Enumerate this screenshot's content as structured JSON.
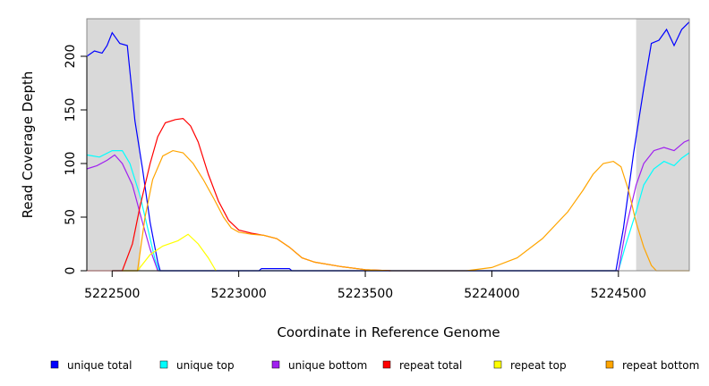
{
  "chart_data": {
    "type": "line",
    "xlabel": "Coordinate in Reference Genome",
    "ylabel": "Read Coverage Depth",
    "xlim": [
      5222400,
      5224780
    ],
    "ylim": [
      0,
      235
    ],
    "x_ticks": [
      5222500,
      5223000,
      5223500,
      5224000,
      5224500
    ],
    "y_ticks": [
      0,
      50,
      100,
      150,
      200
    ],
    "grid": false,
    "legend_position": "bottom",
    "shaded_regions": [
      {
        "x0": 5222400,
        "x1": 5222610,
        "color": "#d9d9d9"
      },
      {
        "x0": 5224570,
        "x1": 5224780,
        "color": "#d9d9d9"
      }
    ],
    "series": [
      {
        "name": "unique total",
        "color": "#0000ff",
        "points": [
          [
            5222400,
            200
          ],
          [
            5222430,
            205
          ],
          [
            5222460,
            203
          ],
          [
            5222480,
            210
          ],
          [
            5222500,
            222
          ],
          [
            5222530,
            212
          ],
          [
            5222560,
            210
          ],
          [
            5222590,
            140
          ],
          [
            5222620,
            95
          ],
          [
            5222650,
            45
          ],
          [
            5222680,
            8
          ],
          [
            5222690,
            0
          ],
          [
            5223080,
            0
          ],
          [
            5223090,
            2
          ],
          [
            5223200,
            2
          ],
          [
            5223210,
            0
          ],
          [
            5224490,
            0
          ],
          [
            5224520,
            40
          ],
          [
            5224560,
            110
          ],
          [
            5224600,
            170
          ],
          [
            5224630,
            212
          ],
          [
            5224660,
            215
          ],
          [
            5224690,
            225
          ],
          [
            5224720,
            210
          ],
          [
            5224750,
            225
          ],
          [
            5224780,
            232
          ]
        ]
      },
      {
        "name": "unique top",
        "color": "#00ffff",
        "points": [
          [
            5222400,
            108
          ],
          [
            5222450,
            106
          ],
          [
            5222500,
            112
          ],
          [
            5222540,
            112
          ],
          [
            5222570,
            100
          ],
          [
            5222610,
            70
          ],
          [
            5222640,
            40
          ],
          [
            5222670,
            10
          ],
          [
            5222685,
            0
          ],
          [
            5224500,
            0
          ],
          [
            5224530,
            25
          ],
          [
            5224570,
            55
          ],
          [
            5224600,
            80
          ],
          [
            5224640,
            95
          ],
          [
            5224680,
            102
          ],
          [
            5224720,
            98
          ],
          [
            5224750,
            105
          ],
          [
            5224780,
            110
          ]
        ]
      },
      {
        "name": "unique bottom",
        "color": "#a020f0",
        "points": [
          [
            5222400,
            95
          ],
          [
            5222440,
            98
          ],
          [
            5222480,
            103
          ],
          [
            5222510,
            108
          ],
          [
            5222540,
            100
          ],
          [
            5222580,
            80
          ],
          [
            5222620,
            45
          ],
          [
            5222650,
            20
          ],
          [
            5222680,
            0
          ],
          [
            5224500,
            0
          ],
          [
            5224530,
            40
          ],
          [
            5224570,
            80
          ],
          [
            5224600,
            100
          ],
          [
            5224640,
            112
          ],
          [
            5224680,
            115
          ],
          [
            5224720,
            112
          ],
          [
            5224760,
            120
          ],
          [
            5224780,
            122
          ]
        ]
      },
      {
        "name": "repeat total",
        "color": "#ff0000",
        "points": [
          [
            5222400,
            0
          ],
          [
            5222540,
            0
          ],
          [
            5222580,
            25
          ],
          [
            5222610,
            60
          ],
          [
            5222650,
            100
          ],
          [
            5222680,
            125
          ],
          [
            5222710,
            138
          ],
          [
            5222750,
            141
          ],
          [
            5222780,
            142
          ],
          [
            5222810,
            135
          ],
          [
            5222840,
            120
          ],
          [
            5222880,
            90
          ],
          [
            5222920,
            65
          ],
          [
            5222960,
            47
          ],
          [
            5223000,
            38
          ],
          [
            5223050,
            35
          ],
          [
            5223100,
            33
          ],
          [
            5223150,
            30
          ],
          [
            5223200,
            22
          ],
          [
            5223250,
            12
          ],
          [
            5223300,
            8
          ],
          [
            5223400,
            4
          ],
          [
            5223500,
            1
          ],
          [
            5223600,
            0
          ]
        ]
      },
      {
        "name": "repeat top",
        "color": "#ffff00",
        "points": [
          [
            5222540,
            0
          ],
          [
            5222600,
            0
          ],
          [
            5222650,
            15
          ],
          [
            5222700,
            23
          ],
          [
            5222760,
            28
          ],
          [
            5222800,
            34
          ],
          [
            5222840,
            25
          ],
          [
            5222880,
            12
          ],
          [
            5222910,
            0
          ]
        ]
      },
      {
        "name": "repeat bottom",
        "color": "#ffa500",
        "points": [
          [
            5222540,
            0
          ],
          [
            5222600,
            0
          ],
          [
            5222630,
            50
          ],
          [
            5222660,
            85
          ],
          [
            5222700,
            107
          ],
          [
            5222740,
            112
          ],
          [
            5222780,
            110
          ],
          [
            5222820,
            100
          ],
          [
            5222860,
            85
          ],
          [
            5222900,
            68
          ],
          [
            5222940,
            50
          ],
          [
            5222970,
            40
          ],
          [
            5223000,
            36
          ],
          [
            5223050,
            34
          ],
          [
            5223100,
            33
          ],
          [
            5223150,
            30
          ],
          [
            5223200,
            22
          ],
          [
            5223250,
            12
          ],
          [
            5223300,
            8
          ],
          [
            5223400,
            4
          ],
          [
            5223500,
            1
          ],
          [
            5223600,
            0
          ],
          [
            5223900,
            0
          ],
          [
            5224000,
            3
          ],
          [
            5224100,
            12
          ],
          [
            5224200,
            30
          ],
          [
            5224300,
            55
          ],
          [
            5224360,
            75
          ],
          [
            5224400,
            90
          ],
          [
            5224440,
            100
          ],
          [
            5224480,
            102
          ],
          [
            5224510,
            97
          ],
          [
            5224540,
            75
          ],
          [
            5224570,
            45
          ],
          [
            5224600,
            22
          ],
          [
            5224630,
            5
          ],
          [
            5224650,
            0
          ],
          [
            5224780,
            0
          ]
        ]
      }
    ]
  }
}
